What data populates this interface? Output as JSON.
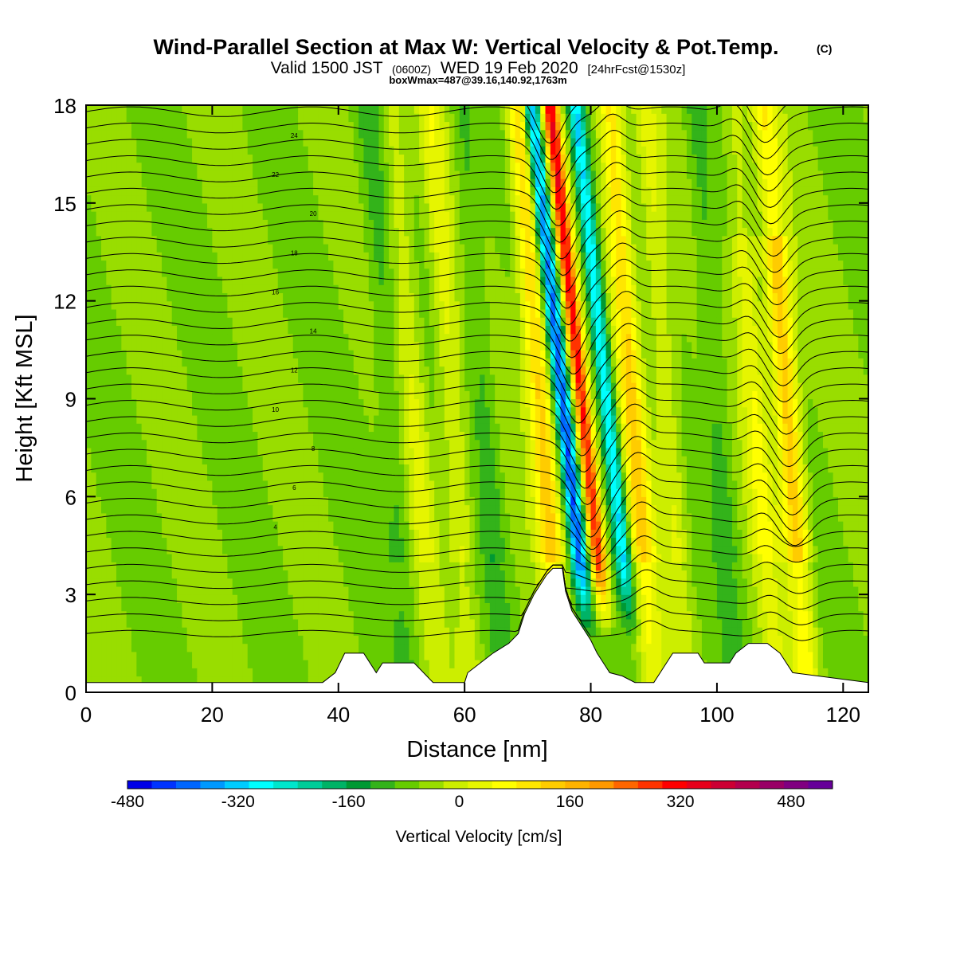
{
  "header": {
    "title": "Wind-Parallel Section at Max W: Vertical Velocity & Pot.Temp.",
    "copyright": "(C)",
    "valid_prefix": "Valid 1500 JST",
    "valid_utc": "(0600Z)",
    "valid_date": "WED 19 Feb 2020",
    "forecast": "[24hrFcst@1530z]",
    "boxwmax": "boxWmax=487@39.16,140.92,1763m"
  },
  "chart_data": {
    "type": "heatmap",
    "title": "Wind-Parallel Section at Max W: Vertical Velocity & Pot.Temp.",
    "xlabel": "Distance [nm]",
    "ylabel": "Height [Kft MSL]",
    "xlim": [
      0,
      124
    ],
    "ylim": [
      0,
      18
    ],
    "x_ticks": [
      0,
      20,
      40,
      60,
      80,
      100,
      120
    ],
    "y_ticks": [
      0,
      3,
      6,
      9,
      12,
      15,
      18
    ],
    "colorbar": {
      "label": "Vertical Velocity [cm/s]",
      "min": -480,
      "max": 540,
      "step": 40,
      "tick_values": [
        -480,
        -320,
        -160,
        0,
        160,
        320,
        480
      ],
      "colors": [
        "#0000e6",
        "#0033ff",
        "#0066ff",
        "#0099ff",
        "#00ccff",
        "#00ffff",
        "#00e6cc",
        "#00cc99",
        "#00b366",
        "#009933",
        "#33b31a",
        "#66cc00",
        "#99dd00",
        "#ccee00",
        "#e6f500",
        "#ffff00",
        "#ffe600",
        "#ffcc00",
        "#ffb300",
        "#ff9900",
        "#ff6600",
        "#ff3300",
        "#ff0000",
        "#e6001a",
        "#cc0033",
        "#b3004d",
        "#990066",
        "#800080",
        "#660099"
      ]
    },
    "w_features": [
      {
        "x_center": 78.5,
        "w_max": 420,
        "kind": "updraft"
      },
      {
        "x_center": 75.5,
        "w_min": -380,
        "kind": "downdraft"
      },
      {
        "x_center": 82.5,
        "w_min": -300,
        "kind": "downdraft"
      },
      {
        "x_center": 86.5,
        "w_max": 200,
        "kind": "updraft"
      },
      {
        "x_center": 72.0,
        "w_max": 220,
        "kind": "updraft"
      },
      {
        "x_center": 111.0,
        "w_max": 240,
        "kind": "updraft"
      },
      {
        "x_center": 106.0,
        "w_max": 120,
        "kind": "updraft"
      },
      {
        "x_center": 92.0,
        "w_max": 90,
        "kind": "updraft"
      },
      {
        "x_center": 52.0,
        "w_max": 80,
        "kind": "updraft"
      },
      {
        "x_center": 58.0,
        "w_max": 100,
        "kind": "updraft"
      },
      {
        "x_center": 48.0,
        "w_min": -60,
        "kind": "downdraft"
      },
      {
        "x_center": 63.0,
        "w_min": -60,
        "kind": "downdraft"
      },
      {
        "x_center": 100.0,
        "w_min": -60,
        "kind": "downdraft"
      }
    ],
    "terrain": {
      "x": [
        0,
        37.5,
        39.5,
        41,
        44,
        46,
        47,
        52,
        55,
        60,
        60.5,
        62.5,
        64.5,
        67,
        68.5,
        69.5,
        71,
        72,
        73,
        74,
        75.5,
        76,
        77,
        78,
        80,
        81,
        82,
        83,
        85,
        87,
        90,
        91,
        92,
        93,
        97,
        98,
        102,
        103,
        105,
        108,
        110,
        112,
        124
      ],
      "height_kft": [
        0.3,
        0.3,
        0.6,
        1.2,
        1.2,
        0.6,
        0.9,
        0.9,
        0.3,
        0.3,
        0.6,
        0.9,
        1.2,
        1.5,
        1.8,
        2.4,
        3.0,
        3.3,
        3.6,
        3.8,
        3.8,
        3.1,
        2.5,
        2.2,
        1.6,
        1.2,
        0.9,
        0.6,
        0.5,
        0.3,
        0.3,
        0.6,
        0.9,
        1.2,
        1.2,
        0.9,
        0.9,
        1.2,
        1.5,
        1.5,
        1.2,
        0.6,
        0.3
      ]
    },
    "theta_contours": {
      "base_height_kft": 1.8,
      "increment_kft": 0.5,
      "count": 34,
      "label_values": [
        "4",
        "6",
        "8",
        "10",
        "12",
        "14",
        "16",
        "18",
        "20",
        "22",
        "24"
      ]
    }
  }
}
